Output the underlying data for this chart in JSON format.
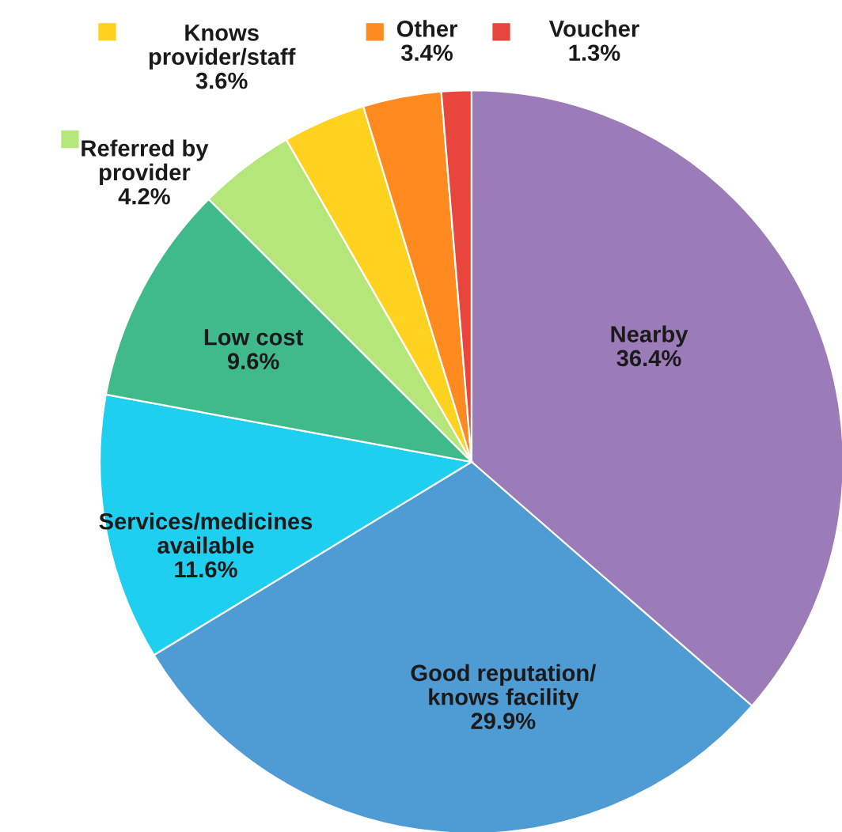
{
  "chart_data": {
    "type": "pie",
    "legend": "top",
    "categories": [
      "Nearby",
      "Good reputation/\nknows facility",
      "Services/medicines\navailable",
      "Low cost",
      "Referred by\nprovider",
      "Knows\nprovider/staff",
      "Other",
      "Voucher"
    ],
    "values": [
      36.4,
      29.9,
      11.6,
      9.6,
      4.2,
      3.6,
      3.4,
      1.3
    ],
    "value_labels": [
      "36.4%",
      "29.9%",
      "11.6%",
      "9.6%",
      "4.2%",
      "3.6%",
      "3.4%",
      "1.3%"
    ],
    "colors": [
      "#9b7bb8",
      "#4f9bd4",
      "#1fcff0",
      "#40b98b",
      "#b4e67a",
      "#ffd21f",
      "#ff8a1f",
      "#e8463c"
    ]
  }
}
